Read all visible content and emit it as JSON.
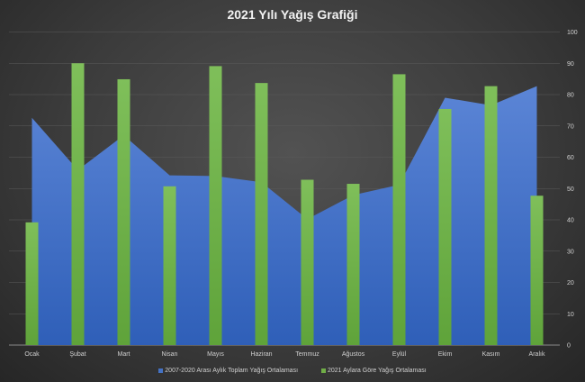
{
  "chart_data": {
    "type": "area+bar",
    "title": "2021 Yılı Yağış Grafiği",
    "categories": [
      "Ocak",
      "Şubat",
      "Mart",
      "Nisan",
      "Mayıs",
      "Haziran",
      "Temmuz",
      "Ağustos",
      "Eylül",
      "Ekim",
      "Kasım",
      "Aralık"
    ],
    "series": [
      {
        "name": "2007-2020 Arası Aylık Toplam Yağış Ortalaması",
        "type": "area",
        "color": "#4472c4",
        "values": [
          72.6,
          55.9,
          67.0,
          54.2,
          54.0,
          52.0,
          40.2,
          47.9,
          51.2,
          79.0,
          76.6,
          82.7
        ]
      },
      {
        "name": "2021 Aylara Göre Yağış Ortalaması",
        "type": "bar",
        "color": "#70ad47",
        "values": [
          39.2,
          90.0,
          84.9,
          50.7,
          89.1,
          83.7,
          52.8,
          51.5,
          86.5,
          75.4,
          82.7,
          47.7
        ]
      }
    ],
    "ylim": [
      0,
      100
    ],
    "yticks": [
      0,
      10,
      20,
      30,
      40,
      50,
      60,
      70,
      80,
      90,
      100
    ],
    "y_axis_side": "right",
    "grid": true,
    "legend": "bottom"
  }
}
